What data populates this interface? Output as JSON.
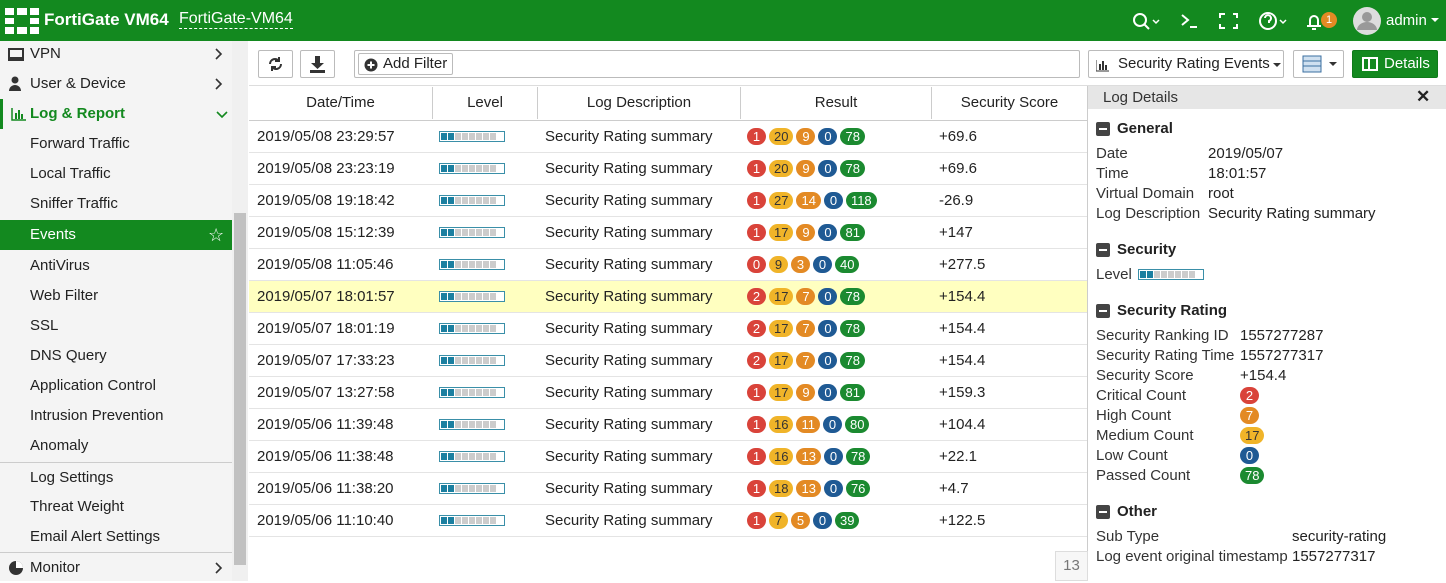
{
  "header": {
    "brand": "FortiGate VM64",
    "hostname": "FortiGate-VM64",
    "notification_count": 1,
    "user": "admin"
  },
  "sidebar": {
    "items": [
      "VPN",
      "User & Device",
      "Log & Report",
      "Forward Traffic",
      "Local Traffic",
      "Sniffer Traffic",
      "Events",
      "AntiVirus",
      "Web Filter",
      "SSL",
      "DNS Query",
      "Application Control",
      "Intrusion Prevention",
      "Anomaly",
      "Log Settings",
      "Threat Weight",
      "Email Alert Settings",
      "Monitor"
    ]
  },
  "toolbar": {
    "add_filter": "Add Filter",
    "view": "Security Rating Events",
    "details": "Details"
  },
  "table": {
    "columns": [
      "Date/Time",
      "Level",
      "Log Description",
      "Result",
      "Security Score"
    ],
    "rows": [
      {
        "datetime": "2019/05/08 23:29:57",
        "description": "Security Rating summary",
        "result": [
          1,
          20,
          9,
          0,
          78
        ],
        "score": "+69.6"
      },
      {
        "datetime": "2019/05/08 23:23:19",
        "description": "Security Rating summary",
        "result": [
          1,
          20,
          9,
          0,
          78
        ],
        "score": "+69.6"
      },
      {
        "datetime": "2019/05/08 19:18:42",
        "description": "Security Rating summary",
        "result": [
          1,
          27,
          14,
          0,
          118
        ],
        "score": "-26.9"
      },
      {
        "datetime": "2019/05/08 15:12:39",
        "description": "Security Rating summary",
        "result": [
          1,
          17,
          9,
          0,
          81
        ],
        "score": "+147"
      },
      {
        "datetime": "2019/05/08 11:05:46",
        "description": "Security Rating summary",
        "result": [
          0,
          9,
          3,
          0,
          40
        ],
        "score": "+277.5"
      },
      {
        "datetime": "2019/05/07 18:01:57",
        "description": "Security Rating summary",
        "result": [
          2,
          17,
          7,
          0,
          78
        ],
        "score": "+154.4"
      },
      {
        "datetime": "2019/05/07 18:01:19",
        "description": "Security Rating summary",
        "result": [
          2,
          17,
          7,
          0,
          78
        ],
        "score": "+154.4"
      },
      {
        "datetime": "2019/05/07 17:33:23",
        "description": "Security Rating summary",
        "result": [
          2,
          17,
          7,
          0,
          78
        ],
        "score": "+154.4"
      },
      {
        "datetime": "2019/05/07 13:27:58",
        "description": "Security Rating summary",
        "result": [
          1,
          17,
          9,
          0,
          81
        ],
        "score": "+159.3"
      },
      {
        "datetime": "2019/05/06 11:39:48",
        "description": "Security Rating summary",
        "result": [
          1,
          16,
          11,
          0,
          80
        ],
        "score": "+104.4"
      },
      {
        "datetime": "2019/05/06 11:38:48",
        "description": "Security Rating summary",
        "result": [
          1,
          16,
          13,
          0,
          78
        ],
        "score": "+22.1"
      },
      {
        "datetime": "2019/05/06 11:38:20",
        "description": "Security Rating summary",
        "result": [
          1,
          18,
          13,
          0,
          76
        ],
        "score": "+4.7"
      },
      {
        "datetime": "2019/05/06 11:10:40",
        "description": "Security Rating summary",
        "result": [
          1,
          7,
          5,
          0,
          39
        ],
        "score": "+122.5"
      }
    ],
    "row_count": 13
  },
  "details": {
    "title": "Log Details",
    "sections": [
      {
        "title": "General",
        "fields": [
          {
            "label": "Date",
            "value": "2019/05/07"
          },
          {
            "label": "Time",
            "value": "18:01:57"
          },
          {
            "label": "Virtual Domain",
            "value": "root"
          },
          {
            "label": "Log Description",
            "value": "Security Rating summary"
          }
        ]
      },
      {
        "title": "Security",
        "fields": [
          {
            "label": "Level"
          }
        ]
      },
      {
        "title": "Security Rating",
        "fields": [
          {
            "label": "Security Ranking ID",
            "value": 1557277287
          },
          {
            "label": "Security Rating Time",
            "value": 1557277317
          },
          {
            "label": "Security Score",
            "value": "+154.4"
          },
          {
            "label": "Critical Count",
            "value": 2
          },
          {
            "label": "High Count",
            "value": 7
          },
          {
            "label": "Medium Count",
            "value": 17
          },
          {
            "label": "Low Count",
            "value": 0
          },
          {
            "label": "Passed Count",
            "value": 78
          }
        ]
      },
      {
        "title": "Other",
        "fields": [
          {
            "label": "Sub Type",
            "value": "security-rating"
          },
          {
            "label": "Log event original timestamp",
            "value": 1557277317
          }
        ]
      }
    ]
  }
}
